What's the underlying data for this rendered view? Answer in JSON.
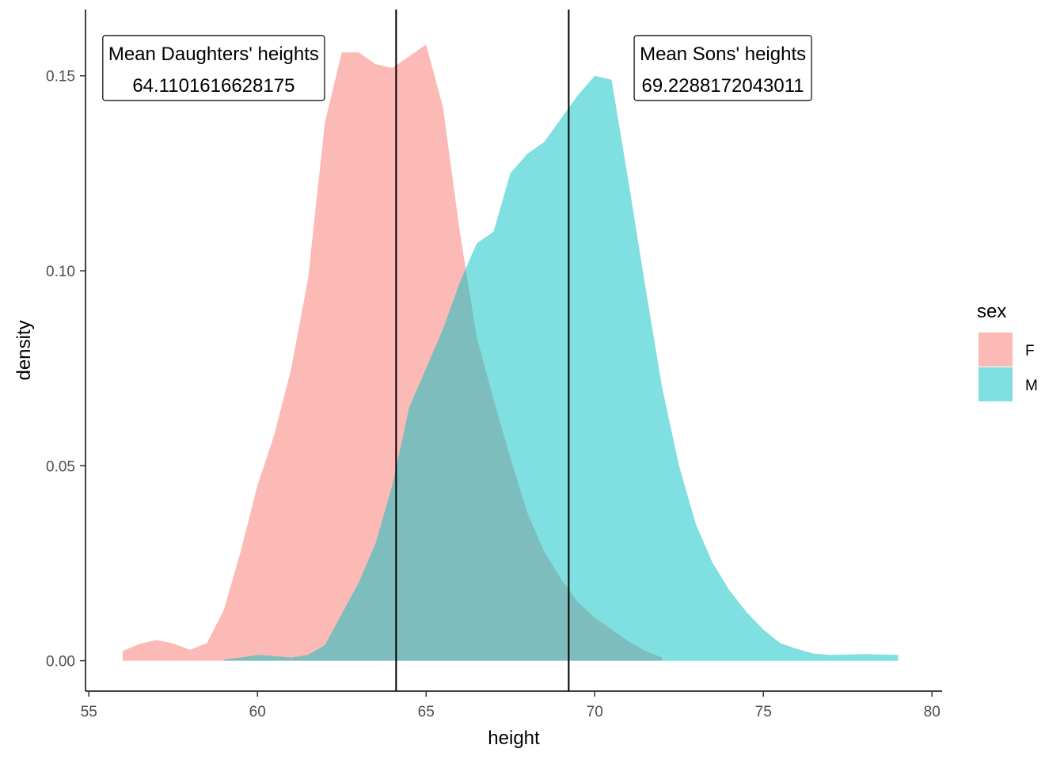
{
  "chart_data": {
    "type": "area",
    "subtype": "density",
    "title": "",
    "xlabel": "height",
    "ylabel": "density",
    "xlim": [
      54.9,
      80.3
    ],
    "ylim": [
      -0.0078,
      0.167
    ],
    "x_ticks": [
      55,
      60,
      65,
      70,
      75,
      80
    ],
    "x_tick_labels": [
      "55",
      "60",
      "65",
      "70",
      "75",
      "80"
    ],
    "y_ticks": [
      0.0,
      0.05,
      0.1,
      0.15
    ],
    "y_tick_labels": [
      "0.00",
      "0.05",
      "0.10",
      "0.15"
    ],
    "grid": false,
    "legend": {
      "title": "sex",
      "position": "right",
      "entries": [
        {
          "label": "F",
          "color": "#F8766D"
        },
        {
          "label": "M",
          "color": "#00BFC4"
        }
      ]
    },
    "series": [
      {
        "name": "F",
        "color": "#F8766D",
        "opacity": 0.5,
        "x": [
          56,
          56.5,
          57,
          57.5,
          58,
          58.5,
          59,
          59.5,
          60,
          60.5,
          61,
          61.5,
          62,
          62.5,
          63,
          63.5,
          64,
          64.5,
          65,
          65.5,
          66,
          66.5,
          67,
          67.5,
          68,
          68.5,
          69,
          69.5,
          70,
          70.5,
          71,
          71.5,
          72
        ],
        "y": [
          0.0025,
          0.0043,
          0.0053,
          0.0044,
          0.0028,
          0.0045,
          0.013,
          0.028,
          0.045,
          0.058,
          0.075,
          0.098,
          0.138,
          0.156,
          0.156,
          0.153,
          0.152,
          0.155,
          0.158,
          0.142,
          0.11,
          0.083,
          0.067,
          0.052,
          0.038,
          0.028,
          0.021,
          0.015,
          0.011,
          0.008,
          0.005,
          0.0025,
          0.0008
        ]
      },
      {
        "name": "M",
        "color": "#00BFC4",
        "opacity": 0.5,
        "x": [
          59,
          59.5,
          60,
          60.5,
          61,
          61.5,
          62,
          62.5,
          63,
          63.5,
          64,
          64.5,
          65,
          65.5,
          66,
          66.5,
          67,
          67.5,
          68,
          68.5,
          69,
          69.5,
          70,
          70.5,
          71,
          71.5,
          72,
          72.5,
          73,
          73.5,
          74,
          74.5,
          75,
          75.5,
          76,
          76.5,
          77,
          77.5,
          78,
          78.5,
          79
        ],
        "y": [
          0.0003,
          0.0008,
          0.0015,
          0.0012,
          0.0008,
          0.0015,
          0.004,
          0.012,
          0.02,
          0.03,
          0.045,
          0.065,
          0.075,
          0.085,
          0.097,
          0.107,
          0.11,
          0.125,
          0.13,
          0.133,
          0.139,
          0.145,
          0.15,
          0.149,
          0.123,
          0.096,
          0.07,
          0.05,
          0.035,
          0.025,
          0.018,
          0.0125,
          0.008,
          0.0045,
          0.003,
          0.0018,
          0.0015,
          0.0016,
          0.0017,
          0.0016,
          0.0015
        ]
      }
    ],
    "vlines": [
      {
        "name": "mean-daughters",
        "x": 64.1101616628175
      },
      {
        "name": "mean-sons",
        "x": 69.2288172043011
      }
    ],
    "annotations": [
      {
        "name": "mean-daughters",
        "line1": "Mean Daughters' heights",
        "line2": "64.1101616628175",
        "x": 58.7,
        "y": 0.152
      },
      {
        "name": "mean-sons",
        "line1": "Mean Sons' heights",
        "line2": "69.2288172043011",
        "x": 73.8,
        "y": 0.152
      }
    ]
  }
}
